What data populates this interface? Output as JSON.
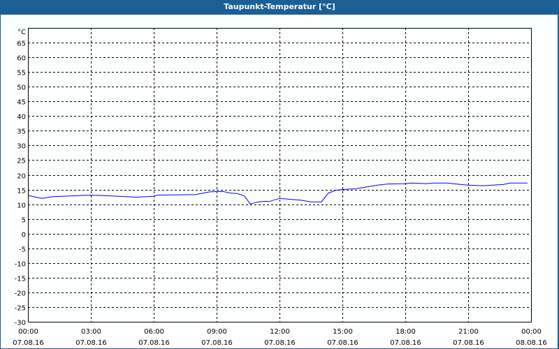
{
  "chart_data": {
    "type": "line",
    "title": "Taupunkt-Temperatur [°C]",
    "ylabel": "°C",
    "ylim": [
      -30,
      70
    ],
    "yticks": [
      65,
      60,
      55,
      50,
      45,
      40,
      35,
      30,
      25,
      20,
      15,
      10,
      5,
      0,
      -5,
      -10,
      -15,
      -20,
      -25,
      -30
    ],
    "xlim_hours": [
      0,
      24
    ],
    "xticks": [
      {
        "time": "00:00",
        "date": "07.08.16"
      },
      {
        "time": "03:00",
        "date": "07.08.16"
      },
      {
        "time": "06:00",
        "date": "07.08.16"
      },
      {
        "time": "09:00",
        "date": "07.08.16"
      },
      {
        "time": "12:00",
        "date": "07.08.16"
      },
      {
        "time": "15:00",
        "date": "07.08.16"
      },
      {
        "time": "18:00",
        "date": "07.08.16"
      },
      {
        "time": "21:00",
        "date": "07.08.16"
      },
      {
        "time": "00:00",
        "date": "08.08.16"
      }
    ],
    "grid": true,
    "line_color": "#0000ff",
    "series": [
      {
        "x_hours": [
          0,
          0.67,
          1.17,
          3.0,
          4.0,
          5.17,
          6.0,
          6.17,
          8.0,
          8.67,
          9.0,
          9.33,
          9.67,
          10.0,
          10.33,
          10.6,
          11.0,
          11.33,
          11.5,
          12.0,
          13.0,
          13.5,
          14.0,
          14.33,
          14.67,
          15.0,
          15.67,
          16.67,
          17.17,
          18.0,
          18.33,
          19.0,
          19.33,
          20.0,
          20.67,
          21.0,
          21.67,
          22.67,
          23.0,
          23.83
        ],
        "y": [
          13.0,
          12.0,
          12.6,
          13.1,
          12.8,
          12.4,
          12.7,
          13.1,
          13.3,
          14.2,
          14.3,
          14.3,
          13.8,
          13.6,
          12.8,
          10.1,
          10.8,
          11.0,
          10.9,
          12.0,
          11.4,
          10.8,
          10.8,
          13.8,
          14.7,
          15.0,
          15.3,
          16.5,
          16.9,
          17.0,
          17.2,
          17.0,
          17.2,
          17.2,
          16.7,
          16.5,
          16.3,
          16.7,
          17.2,
          17.2
        ]
      }
    ]
  }
}
